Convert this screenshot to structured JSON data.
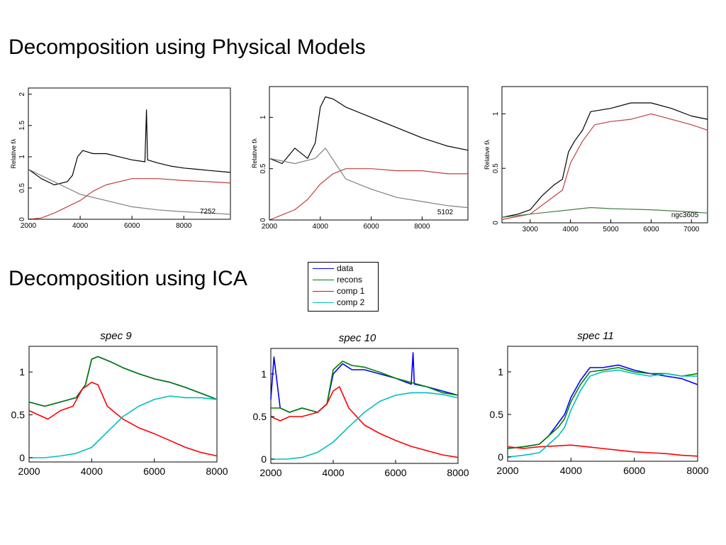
{
  "headings": {
    "physical": "Decomposition using Physical Models",
    "ica": "Decomposition using ICA"
  },
  "legend": {
    "items": [
      {
        "label": "data",
        "color": "#0000ff"
      },
      {
        "label": "recons",
        "color": "#008000"
      },
      {
        "label": "comp 1",
        "color": "#ff0000"
      },
      {
        "label": "comp 2",
        "color": "#00bfbf"
      }
    ]
  },
  "chart_data": [
    {
      "type": "line",
      "id": "phys1",
      "annotation": "7252",
      "ylabel": "Relative fλ",
      "xlim": [
        2000,
        9800
      ],
      "ylim": [
        0,
        2.1
      ],
      "xticks": [
        2000,
        4000,
        6000,
        8000
      ],
      "yticks": [
        0,
        0.5,
        1,
        1.5,
        2
      ],
      "series": [
        {
          "color": "#000000",
          "x": [
            2000,
            2500,
            3000,
            3500,
            3700,
            3900,
            4100,
            4500,
            5000,
            5500,
            6000,
            6500,
            6560,
            6600,
            7000,
            7500,
            8000,
            8500,
            9000,
            9800
          ],
          "y": [
            0.8,
            0.65,
            0.55,
            0.6,
            0.7,
            1.0,
            1.1,
            1.05,
            1.05,
            1.0,
            0.95,
            0.92,
            1.75,
            0.95,
            0.9,
            0.85,
            0.82,
            0.8,
            0.78,
            0.75
          ]
        },
        {
          "color": "#c04040",
          "x": [
            2000,
            2500,
            3000,
            3500,
            4000,
            4500,
            5000,
            6000,
            7000,
            8000,
            9000,
            9800
          ],
          "y": [
            0.0,
            0.02,
            0.1,
            0.2,
            0.3,
            0.45,
            0.55,
            0.65,
            0.65,
            0.62,
            0.6,
            0.58
          ]
        },
        {
          "color": "#808080",
          "x": [
            2000,
            3000,
            3500,
            4000,
            5000,
            6000,
            7000,
            8000,
            9000,
            9800
          ],
          "y": [
            0.8,
            0.6,
            0.5,
            0.4,
            0.3,
            0.2,
            0.15,
            0.12,
            0.1,
            0.08
          ]
        }
      ]
    },
    {
      "type": "line",
      "id": "phys2",
      "annotation": "5102",
      "ylabel": "Relative fλ",
      "xlim": [
        2000,
        9800
      ],
      "ylim": [
        0,
        1.3
      ],
      "xticks": [
        2000,
        4000,
        6000,
        8000
      ],
      "yticks": [
        0,
        0.5,
        1
      ],
      "series": [
        {
          "color": "#000000",
          "x": [
            2000,
            2500,
            3000,
            3500,
            3800,
            4000,
            4200,
            4500,
            5000,
            6000,
            7000,
            8000,
            9000,
            9800
          ],
          "y": [
            0.6,
            0.55,
            0.7,
            0.6,
            0.75,
            1.1,
            1.2,
            1.18,
            1.1,
            1.0,
            0.9,
            0.8,
            0.72,
            0.68
          ]
        },
        {
          "color": "#c04040",
          "x": [
            2000,
            2500,
            3000,
            3500,
            4000,
            4500,
            5000,
            6000,
            7000,
            8000,
            9000,
            9800
          ],
          "y": [
            0.0,
            0.05,
            0.1,
            0.2,
            0.35,
            0.45,
            0.5,
            0.5,
            0.48,
            0.48,
            0.45,
            0.45
          ]
        },
        {
          "color": "#808080",
          "x": [
            2000,
            3000,
            3800,
            4200,
            5000,
            6000,
            7000,
            8000,
            9000,
            9800
          ],
          "y": [
            0.6,
            0.55,
            0.6,
            0.7,
            0.4,
            0.3,
            0.22,
            0.18,
            0.14,
            0.12
          ]
        }
      ]
    },
    {
      "type": "line",
      "id": "phys3",
      "annotation": "ngc3605",
      "ylabel": "Relative fλ",
      "xlim": [
        2300,
        7400
      ],
      "ylim": [
        0,
        1.25
      ],
      "xticks": [
        3000,
        4000,
        5000,
        6000,
        7000
      ],
      "yticks": [
        0,
        0.5,
        1
      ],
      "series": [
        {
          "color": "#000000",
          "x": [
            2300,
            2700,
            3000,
            3300,
            3600,
            3800,
            3950,
            4100,
            4300,
            4500,
            5000,
            5500,
            6000,
            6500,
            7000,
            7400
          ],
          "y": [
            0.05,
            0.08,
            0.12,
            0.25,
            0.35,
            0.4,
            0.65,
            0.75,
            0.85,
            1.02,
            1.05,
            1.1,
            1.1,
            1.05,
            0.98,
            0.95
          ]
        },
        {
          "color": "#c04040",
          "x": [
            2300,
            3000,
            3800,
            4000,
            4300,
            4600,
            5000,
            5500,
            6000,
            6500,
            7000,
            7400
          ],
          "y": [
            0.03,
            0.08,
            0.3,
            0.55,
            0.75,
            0.9,
            0.93,
            0.95,
            1.0,
            0.95,
            0.9,
            0.85
          ]
        },
        {
          "color": "#408040",
          "x": [
            2300,
            3000,
            4000,
            4500,
            5000,
            6000,
            7000,
            7400
          ],
          "y": [
            0.05,
            0.08,
            0.12,
            0.14,
            0.13,
            0.12,
            0.1,
            0.09
          ]
        }
      ]
    },
    {
      "type": "line",
      "id": "ica9",
      "title": "spec 9",
      "xlim": [
        2000,
        8000
      ],
      "ylim": [
        -0.05,
        1.3
      ],
      "xticks": [
        2000,
        4000,
        6000,
        8000
      ],
      "yticks": [
        0,
        0.5,
        1
      ],
      "series": [
        {
          "name": "data",
          "color": "#0000ff",
          "x": [
            2000,
            2500,
            3000,
            3500,
            3800,
            4000,
            4200,
            4600,
            5000,
            5500,
            6000,
            6500,
            7000,
            7500,
            8000
          ],
          "y": [
            0.65,
            0.6,
            0.65,
            0.7,
            0.85,
            1.15,
            1.18,
            1.12,
            1.05,
            0.98,
            0.92,
            0.88,
            0.82,
            0.75,
            0.68
          ]
        },
        {
          "name": "recons",
          "color": "#008000",
          "x": [
            2000,
            2500,
            3000,
            3500,
            3800,
            4000,
            4200,
            4600,
            5000,
            5500,
            6000,
            6500,
            7000,
            7500,
            8000
          ],
          "y": [
            0.65,
            0.6,
            0.65,
            0.7,
            0.85,
            1.15,
            1.18,
            1.12,
            1.05,
            0.98,
            0.92,
            0.88,
            0.82,
            0.75,
            0.68
          ]
        },
        {
          "name": "comp 1",
          "color": "#ff0000",
          "x": [
            2000,
            2300,
            2600,
            3000,
            3400,
            3700,
            4000,
            4200,
            4500,
            5000,
            5500,
            6000,
            6500,
            7000,
            7500,
            8000
          ],
          "y": [
            0.55,
            0.5,
            0.45,
            0.55,
            0.6,
            0.8,
            0.88,
            0.85,
            0.6,
            0.45,
            0.35,
            0.28,
            0.2,
            0.12,
            0.06,
            0.02
          ]
        },
        {
          "name": "comp 2",
          "color": "#00bfbf",
          "x": [
            2000,
            2500,
            3000,
            3500,
            4000,
            4500,
            5000,
            5500,
            6000,
            6500,
            7000,
            7500,
            8000
          ],
          "y": [
            0.0,
            0.0,
            0.02,
            0.05,
            0.12,
            0.3,
            0.48,
            0.6,
            0.68,
            0.72,
            0.7,
            0.7,
            0.68
          ]
        }
      ]
    },
    {
      "type": "line",
      "id": "ica10",
      "title": "spec 10",
      "xlim": [
        2000,
        8000
      ],
      "ylim": [
        -0.05,
        1.3
      ],
      "xticks": [
        2000,
        4000,
        6000,
        8000
      ],
      "yticks": [
        0,
        0.5,
        1
      ],
      "series": [
        {
          "name": "data",
          "color": "#0000ff",
          "x": [
            2000,
            2100,
            2300,
            2600,
            3000,
            3500,
            3800,
            4000,
            4300,
            4600,
            5000,
            5500,
            6000,
            6500,
            6560,
            6600,
            7000,
            7500,
            8000
          ],
          "y": [
            0.7,
            1.2,
            0.6,
            0.55,
            0.6,
            0.55,
            0.65,
            1.0,
            1.12,
            1.05,
            1.05,
            1.0,
            0.95,
            0.88,
            1.25,
            0.88,
            0.85,
            0.8,
            0.75
          ]
        },
        {
          "name": "recons",
          "color": "#008000",
          "x": [
            2000,
            2300,
            2600,
            3000,
            3500,
            3800,
            4000,
            4300,
            4600,
            5000,
            5500,
            6000,
            6500,
            7000,
            7500,
            8000
          ],
          "y": [
            0.6,
            0.6,
            0.55,
            0.6,
            0.55,
            0.65,
            1.05,
            1.15,
            1.1,
            1.08,
            1.02,
            0.95,
            0.9,
            0.85,
            0.78,
            0.75
          ]
        },
        {
          "name": "comp 1",
          "color": "#ff0000",
          "x": [
            2000,
            2300,
            2600,
            3000,
            3500,
            3800,
            4000,
            4200,
            4500,
            5000,
            5500,
            6000,
            6500,
            7000,
            7500,
            8000
          ],
          "y": [
            0.5,
            0.45,
            0.5,
            0.5,
            0.55,
            0.65,
            0.8,
            0.85,
            0.6,
            0.4,
            0.3,
            0.22,
            0.15,
            0.1,
            0.05,
            0.02
          ]
        },
        {
          "name": "comp 2",
          "color": "#00bfbf",
          "x": [
            2000,
            2500,
            3000,
            3500,
            4000,
            4500,
            5000,
            5500,
            6000,
            6500,
            7000,
            7500,
            8000
          ],
          "y": [
            0.0,
            0.0,
            0.02,
            0.08,
            0.2,
            0.38,
            0.55,
            0.68,
            0.75,
            0.78,
            0.78,
            0.76,
            0.72
          ]
        }
      ]
    },
    {
      "type": "line",
      "id": "ica11",
      "title": "spec 11",
      "xlim": [
        2000,
        8000
      ],
      "ylim": [
        -0.05,
        1.3
      ],
      "xticks": [
        2000,
        4000,
        6000,
        8000
      ],
      "yticks": [
        0,
        0.5,
        1
      ],
      "series": [
        {
          "name": "data",
          "color": "#0000ff",
          "x": [
            2000,
            2500,
            3000,
            3300,
            3600,
            3800,
            4000,
            4300,
            4600,
            5000,
            5500,
            6000,
            6500,
            7000,
            7500,
            8000
          ],
          "y": [
            0.1,
            0.12,
            0.15,
            0.25,
            0.4,
            0.5,
            0.7,
            0.9,
            1.05,
            1.05,
            1.08,
            1.02,
            0.98,
            0.95,
            0.92,
            0.85
          ]
        },
        {
          "name": "recons",
          "color": "#008000",
          "x": [
            2000,
            2500,
            3000,
            3300,
            3600,
            3800,
            4000,
            4300,
            4600,
            5000,
            5500,
            6000,
            6500,
            7000,
            7500,
            8000
          ],
          "y": [
            0.1,
            0.12,
            0.15,
            0.25,
            0.35,
            0.45,
            0.65,
            0.85,
            1.0,
            1.02,
            1.05,
            1.0,
            0.98,
            0.98,
            0.95,
            0.98
          ]
        },
        {
          "name": "comp 1",
          "color": "#ff0000",
          "x": [
            2000,
            2500,
            3000,
            3500,
            4000,
            4500,
            5000,
            5500,
            6000,
            6500,
            7000,
            7500,
            8000
          ],
          "y": [
            0.12,
            0.1,
            0.12,
            0.13,
            0.14,
            0.12,
            0.1,
            0.08,
            0.06,
            0.05,
            0.04,
            0.02,
            0.01
          ]
        },
        {
          "name": "comp 2",
          "color": "#00bfbf",
          "x": [
            2000,
            2500,
            3000,
            3300,
            3600,
            3800,
            4000,
            4300,
            4600,
            5000,
            5500,
            6000,
            6500,
            7000,
            7500,
            8000
          ],
          "y": [
            0.0,
            0.02,
            0.05,
            0.15,
            0.25,
            0.35,
            0.55,
            0.78,
            0.95,
            1.0,
            1.02,
            0.98,
            0.95,
            0.98,
            0.95,
            0.95
          ]
        }
      ]
    }
  ]
}
